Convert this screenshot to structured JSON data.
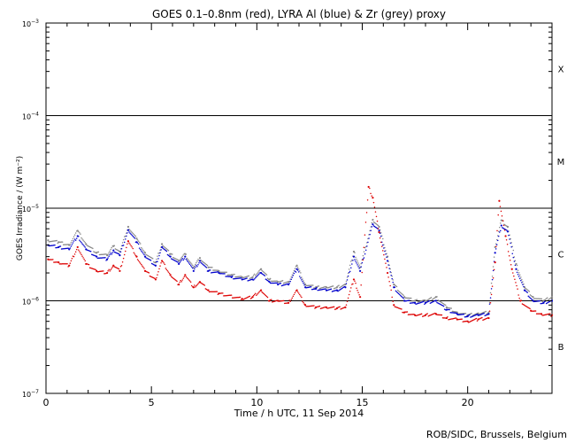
{
  "chart_data": {
    "type": "scatter",
    "title": "GOES 0.1–0.8nm (red), LYRA Al (blue) & Zr (grey) proxy",
    "xlabel": "Time / h UTC, 11 Sep 2014",
    "ylabel": "GOES Irradiance / (W m⁻²)",
    "footer": "ROB/SIDC, Brussels, Belgium",
    "xlim": [
      0,
      24
    ],
    "ylim": [
      1e-07,
      0.001
    ],
    "yscale": "log",
    "x_ticks": [
      0,
      5,
      10,
      15,
      20
    ],
    "x_tick_labels": [
      "0",
      "5",
      "10",
      "15",
      "20"
    ],
    "y_ticks": [
      {
        "value": 1e-07,
        "base": "10",
        "exp": "−7"
      },
      {
        "value": 1e-06,
        "base": "10",
        "exp": "−6"
      },
      {
        "value": 1e-05,
        "base": "10",
        "exp": "−5"
      },
      {
        "value": 0.0001,
        "base": "10",
        "exp": "−4"
      },
      {
        "value": 0.001,
        "base": "10",
        "exp": "−3"
      }
    ],
    "flare_class_lines": [
      1e-06,
      1e-05,
      0.0001
    ],
    "flare_classes": [
      {
        "label": "B",
        "value": 3.2e-07
      },
      {
        "label": "C",
        "value": 3.2e-06
      },
      {
        "label": "M",
        "value": 3.2e-05
      },
      {
        "label": "X",
        "value": 0.00032
      }
    ],
    "series": [
      {
        "name": "Zr (grey)",
        "color": "#888888",
        "points": [
          [
            0.1,
            4.5e-06
          ],
          [
            0.6,
            4.3e-06
          ],
          [
            1.1,
            4e-06
          ],
          [
            1.5,
            5.7e-06
          ],
          [
            1.9,
            4.1e-06
          ],
          [
            2.4,
            3.3e-06
          ],
          [
            2.9,
            3.1e-06
          ],
          [
            3.2,
            3.9e-06
          ],
          [
            3.5,
            3.4e-06
          ],
          [
            3.9,
            6.3e-06
          ],
          [
            4.3,
            4.7e-06
          ],
          [
            4.7,
            3.3e-06
          ],
          [
            5.2,
            2.6e-06
          ],
          [
            5.5,
            4.1e-06
          ],
          [
            5.9,
            3.2e-06
          ],
          [
            6.3,
            2.7e-06
          ],
          [
            6.6,
            3.2e-06
          ],
          [
            7.0,
            2.3e-06
          ],
          [
            7.3,
            2.9e-06
          ],
          [
            7.7,
            2.3e-06
          ],
          [
            8.2,
            2.1e-06
          ],
          [
            8.8,
            1.9e-06
          ],
          [
            9.3,
            1.8e-06
          ],
          [
            9.8,
            1.8e-06
          ],
          [
            10.2,
            2.2e-06
          ],
          [
            10.6,
            1.7e-06
          ],
          [
            11.0,
            1.6e-06
          ],
          [
            11.5,
            1.6e-06
          ],
          [
            11.9,
            2.4e-06
          ],
          [
            12.3,
            1.5e-06
          ],
          [
            12.8,
            1.4e-06
          ],
          [
            13.3,
            1.4e-06
          ],
          [
            13.8,
            1.4e-06
          ],
          [
            14.2,
            1.5e-06
          ],
          [
            14.6,
            3.4e-06
          ],
          [
            14.9,
            2.3e-06
          ],
          [
            15.5,
            7.5e-06
          ],
          [
            15.8,
            6.3e-06
          ],
          [
            16.2,
            3e-06
          ],
          [
            16.5,
            1.5e-06
          ],
          [
            17.0,
            1.1e-06
          ],
          [
            17.5,
            1e-06
          ],
          [
            18.0,
            1e-06
          ],
          [
            18.5,
            1.1e-06
          ],
          [
            19.0,
            8.5e-07
          ],
          [
            19.5,
            7.5e-07
          ],
          [
            20.0,
            7e-07
          ],
          [
            20.5,
            7.3e-07
          ],
          [
            21.0,
            7.5e-07
          ],
          [
            21.3,
            3.8e-06
          ],
          [
            21.6,
            7.4e-06
          ],
          [
            21.9,
            6.3e-06
          ],
          [
            22.3,
            2.5e-06
          ],
          [
            22.7,
            1.4e-06
          ],
          [
            23.1,
            1.1e-06
          ],
          [
            23.6,
            1e-06
          ],
          [
            24.0,
            1.1e-06
          ]
        ]
      },
      {
        "name": "LYRA Al (blue)",
        "color": "#0000cc",
        "points": [
          [
            0.1,
            4e-06
          ],
          [
            0.6,
            3.8e-06
          ],
          [
            1.1,
            3.6e-06
          ],
          [
            1.5,
            5e-06
          ],
          [
            1.9,
            3.6e-06
          ],
          [
            2.4,
            3e-06
          ],
          [
            2.9,
            2.8e-06
          ],
          [
            3.2,
            3.5e-06
          ],
          [
            3.5,
            3.1e-06
          ],
          [
            3.9,
            5.8e-06
          ],
          [
            4.3,
            4.3e-06
          ],
          [
            4.7,
            3e-06
          ],
          [
            5.2,
            2.4e-06
          ],
          [
            5.5,
            3.8e-06
          ],
          [
            5.9,
            3e-06
          ],
          [
            6.3,
            2.5e-06
          ],
          [
            6.6,
            3e-06
          ],
          [
            7.0,
            2.1e-06
          ],
          [
            7.3,
            2.7e-06
          ],
          [
            7.7,
            2.1e-06
          ],
          [
            8.2,
            2e-06
          ],
          [
            8.8,
            1.8e-06
          ],
          [
            9.3,
            1.7e-06
          ],
          [
            9.8,
            1.7e-06
          ],
          [
            10.2,
            2e-06
          ],
          [
            10.6,
            1.6e-06
          ],
          [
            11.0,
            1.5e-06
          ],
          [
            11.5,
            1.5e-06
          ],
          [
            11.9,
            2.2e-06
          ],
          [
            12.3,
            1.4e-06
          ],
          [
            12.8,
            1.35e-06
          ],
          [
            13.3,
            1.3e-06
          ],
          [
            13.8,
            1.3e-06
          ],
          [
            14.2,
            1.4e-06
          ],
          [
            14.6,
            3e-06
          ],
          [
            14.9,
            2.1e-06
          ],
          [
            15.5,
            6.7e-06
          ],
          [
            15.8,
            5.7e-06
          ],
          [
            16.2,
            2.7e-06
          ],
          [
            16.5,
            1.4e-06
          ],
          [
            17.0,
            1e-06
          ],
          [
            17.5,
            9.5e-07
          ],
          [
            18.0,
            9.5e-07
          ],
          [
            18.5,
            1e-06
          ],
          [
            19.0,
            8e-07
          ],
          [
            19.5,
            7.2e-07
          ],
          [
            20.0,
            6.8e-07
          ],
          [
            20.5,
            7e-07
          ],
          [
            21.0,
            7.2e-07
          ],
          [
            21.3,
            3.3e-06
          ],
          [
            21.6,
            6.5e-06
          ],
          [
            21.9,
            5.6e-06
          ],
          [
            22.3,
            2.2e-06
          ],
          [
            22.7,
            1.3e-06
          ],
          [
            23.1,
            1e-06
          ],
          [
            23.6,
            9.5e-07
          ],
          [
            24.0,
            1e-06
          ]
        ]
      },
      {
        "name": "GOES 0.1–0.8nm (red)",
        "color": "#dd0000",
        "points": [
          [
            0.1,
            2.8e-06
          ],
          [
            0.6,
            2.6e-06
          ],
          [
            1.1,
            2.4e-06
          ],
          [
            1.5,
            3.8e-06
          ],
          [
            1.9,
            2.5e-06
          ],
          [
            2.4,
            2.1e-06
          ],
          [
            2.9,
            2e-06
          ],
          [
            3.2,
            2.4e-06
          ],
          [
            3.5,
            2.1e-06
          ],
          [
            3.9,
            4.4e-06
          ],
          [
            4.3,
            3e-06
          ],
          [
            4.7,
            2.1e-06
          ],
          [
            5.2,
            1.7e-06
          ],
          [
            5.5,
            2.7e-06
          ],
          [
            5.9,
            1.9e-06
          ],
          [
            6.3,
            1.5e-06
          ],
          [
            6.6,
            1.9e-06
          ],
          [
            7.0,
            1.4e-06
          ],
          [
            7.3,
            1.6e-06
          ],
          [
            7.7,
            1.3e-06
          ],
          [
            8.2,
            1.2e-06
          ],
          [
            9.3,
            1.05e-06
          ],
          [
            9.8,
            1.1e-06
          ],
          [
            10.2,
            1.3e-06
          ],
          [
            10.6,
            1e-06
          ],
          [
            11.0,
            1e-06
          ],
          [
            11.5,
            9.5e-07
          ],
          [
            11.9,
            1.3e-06
          ],
          [
            12.3,
            9e-07
          ],
          [
            12.8,
            8.5e-07
          ],
          [
            13.3,
            8.5e-07
          ],
          [
            13.8,
            8.3e-07
          ],
          [
            14.2,
            8.5e-07
          ],
          [
            14.6,
            1.7e-06
          ],
          [
            14.9,
            1.1e-06
          ],
          [
            15.3,
            1.7e-05
          ],
          [
            15.5,
            1.3e-05
          ],
          [
            15.8,
            5.5e-06
          ],
          [
            16.2,
            2e-06
          ],
          [
            16.5,
            9e-07
          ],
          [
            17.0,
            7.5e-07
          ],
          [
            17.5,
            7e-07
          ],
          [
            18.0,
            7e-07
          ],
          [
            18.5,
            7.2e-07
          ],
          [
            19.0,
            6.5e-07
          ],
          [
            19.5,
            6.3e-07
          ],
          [
            20.0,
            6e-07
          ],
          [
            20.5,
            6.3e-07
          ],
          [
            21.0,
            6.5e-07
          ],
          [
            21.3,
            2.6e-06
          ],
          [
            21.5,
            1.2e-05
          ],
          [
            21.8,
            5e-06
          ],
          [
            22.1,
            2.2e-06
          ],
          [
            22.5,
            1e-06
          ],
          [
            23.0,
            7.8e-07
          ],
          [
            23.5,
            7.2e-07
          ],
          [
            24.0,
            7e-07
          ]
        ]
      }
    ]
  }
}
